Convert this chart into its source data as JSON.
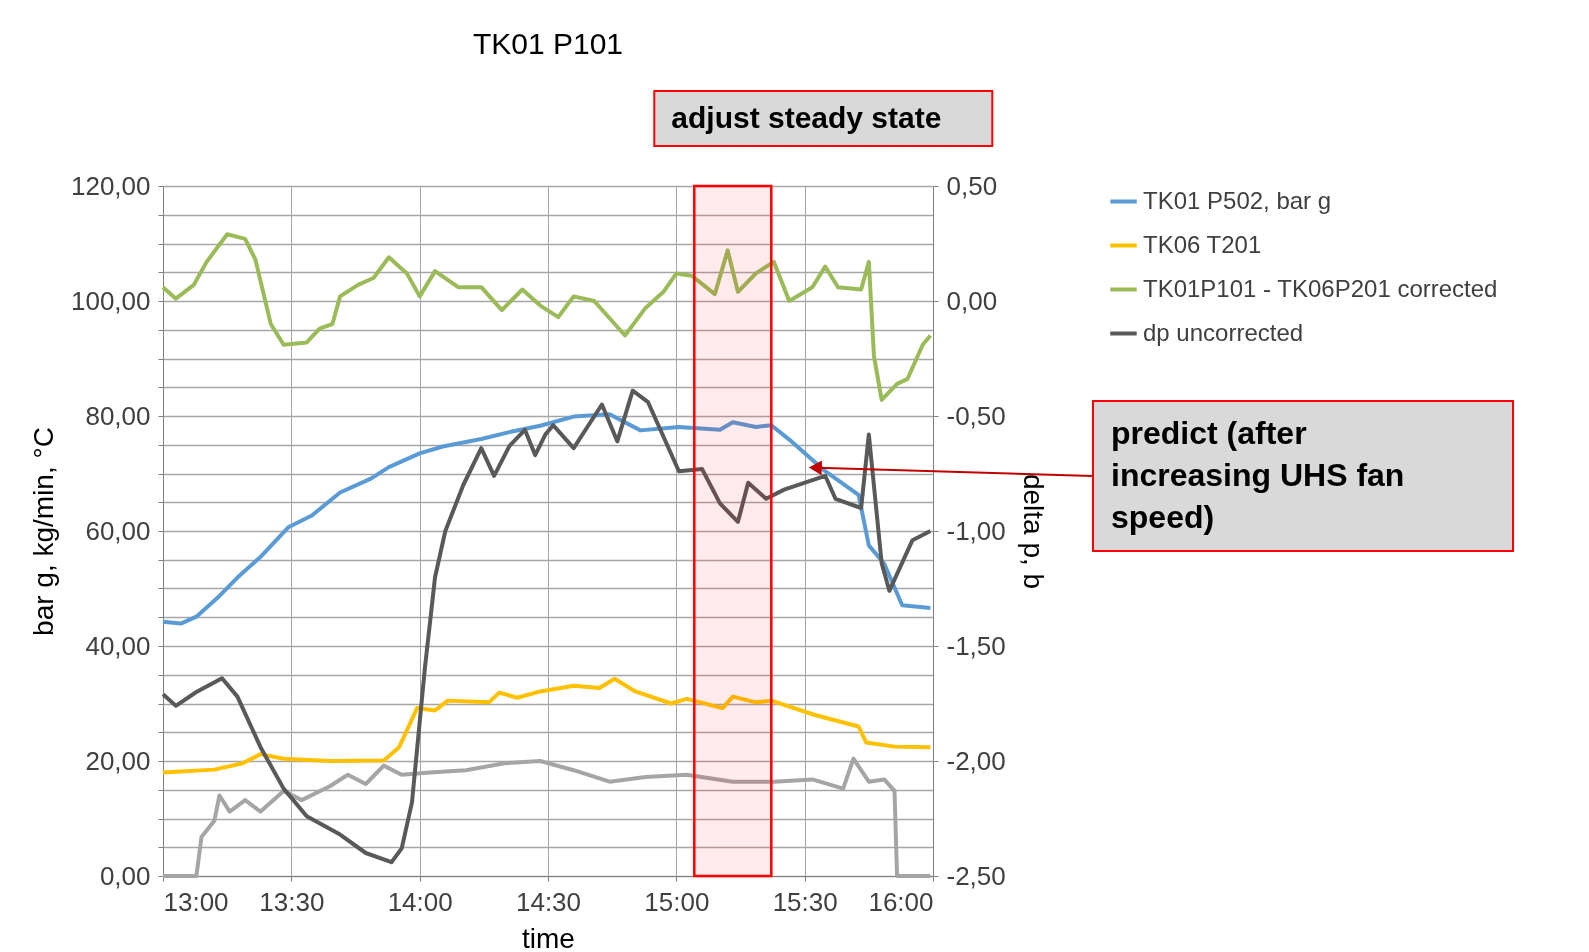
{
  "chart_data": {
    "type": "line",
    "title": "TK01 P101",
    "xlabel": "time",
    "ylabel": "bar g, kg/min, °C",
    "y2label": "delta p, b",
    "xlim": [
      13,
      16
    ],
    "xticks": [
      {
        "value": 13,
        "label": "13:00"
      },
      {
        "value": 13.5,
        "label": "13:30"
      },
      {
        "value": 14,
        "label": "14:00"
      },
      {
        "value": 14.5,
        "label": "14:30"
      },
      {
        "value": 15,
        "label": "15:00"
      },
      {
        "value": 15.5,
        "label": "15:30"
      },
      {
        "value": 16,
        "label": "16:00"
      }
    ],
    "ylim": [
      0,
      120
    ],
    "yticks": [
      {
        "value": 0,
        "label": "0,00"
      },
      {
        "value": 5,
        "label": null
      },
      {
        "value": 10,
        "label": null
      },
      {
        "value": 15,
        "label": null
      },
      {
        "value": 20,
        "label": "20,00"
      },
      {
        "value": 25,
        "label": null
      },
      {
        "value": 30,
        "label": null
      },
      {
        "value": 35,
        "label": null
      },
      {
        "value": 40,
        "label": "40,00"
      },
      {
        "value": 45,
        "label": null
      },
      {
        "value": 50,
        "label": null
      },
      {
        "value": 55,
        "label": null
      },
      {
        "value": 60,
        "label": "60,00"
      },
      {
        "value": 65,
        "label": null
      },
      {
        "value": 70,
        "label": null
      },
      {
        "value": 75,
        "label": null
      },
      {
        "value": 80,
        "label": "80,00"
      },
      {
        "value": 85,
        "label": null
      },
      {
        "value": 90,
        "label": null
      },
      {
        "value": 95,
        "label": null
      },
      {
        "value": 100,
        "label": "100,00"
      },
      {
        "value": 105,
        "label": null
      },
      {
        "value": 110,
        "label": null
      },
      {
        "value": 115,
        "label": null
      },
      {
        "value": 120,
        "label": "120,00"
      }
    ],
    "y2lim": [
      -2.5,
      0.5
    ],
    "y2ticks": [
      {
        "value": -2.5,
        "label": "-2,50"
      },
      {
        "value": -2,
        "label": "-2,00"
      },
      {
        "value": -1.5,
        "label": "-1,50"
      },
      {
        "value": -1,
        "label": "-1,00"
      },
      {
        "value": -0.5,
        "label": "-0,50"
      },
      {
        "value": 0,
        "label": "0,00"
      },
      {
        "value": 0.5,
        "label": "0,50"
      }
    ],
    "grid": true,
    "legend": "right",
    "series": [
      {
        "name": "TK01 P502, bar g",
        "color": "#5b9bd5",
        "x": [
          13.0,
          13.07,
          13.13,
          13.22,
          13.29,
          13.38,
          13.49,
          13.58,
          13.69,
          13.81,
          13.88,
          14.0,
          14.09,
          14.24,
          14.36,
          14.47,
          14.6,
          14.74,
          14.86,
          15.01,
          15.17,
          15.22,
          15.31,
          15.37,
          15.44,
          15.58,
          15.71,
          15.75,
          15.81,
          15.88,
          15.99
        ],
        "values": [
          44.2,
          43.9,
          45.1,
          48.7,
          51.9,
          55.5,
          60.7,
          62.7,
          66.7,
          69.1,
          71.1,
          73.5,
          74.7,
          76.0,
          77.3,
          78.3,
          79.9,
          80.3,
          77.5,
          78.1,
          77.6,
          78.9,
          78.1,
          78.4,
          75.9,
          70.4,
          66.3,
          57.5,
          54.3,
          47.1,
          46.6
        ]
      },
      {
        "color": "#a5a5a5",
        "x": [
          13.0,
          13.13,
          13.15,
          13.2,
          13.22,
          13.26,
          13.32,
          13.38,
          13.47,
          13.54,
          13.65,
          13.72,
          13.79,
          13.86,
          13.93,
          14.04,
          14.18,
          14.33,
          14.47,
          14.6,
          14.74,
          14.88,
          15.04,
          15.22,
          15.38,
          15.53,
          15.65,
          15.69,
          15.75,
          15.81,
          15.85,
          15.86,
          15.99
        ],
        "values": [
          0,
          0,
          6.8,
          9.6,
          14.0,
          11.2,
          13.2,
          11.2,
          14.8,
          13.2,
          15.6,
          17.6,
          16.0,
          19.2,
          17.6,
          18.0,
          18.4,
          19.6,
          20.0,
          18.4,
          16.4,
          17.2,
          17.6,
          16.4,
          16.4,
          16.8,
          15.2,
          20.4,
          16.4,
          16.8,
          14.8,
          0,
          0
        ]
      },
      {
        "name": "TK06 T201",
        "color": "#ffc000",
        "x": [
          13.0,
          13.2,
          13.31,
          13.38,
          13.47,
          13.65,
          13.86,
          13.92,
          13.99,
          14.06,
          14.11,
          14.27,
          14.31,
          14.38,
          14.47,
          14.6,
          14.7,
          14.76,
          14.84,
          14.98,
          15.04,
          15.18,
          15.22,
          15.31,
          15.37,
          15.54,
          15.71,
          15.74,
          15.85,
          15.99
        ],
        "values": [
          18.0,
          18.5,
          19.6,
          21.2,
          20.4,
          20.0,
          20.1,
          22.4,
          29.2,
          28.8,
          30.5,
          30.2,
          31.9,
          31.0,
          32.1,
          33.1,
          32.7,
          34.3,
          32.1,
          30.0,
          30.8,
          29.2,
          31.2,
          30.2,
          30.5,
          28.0,
          26.0,
          23.2,
          22.5,
          22.4
        ]
      },
      {
        "name": "TK01P101 - TK06P201 corrected",
        "color": "#9bbb59",
        "axis": "y2",
        "x": [
          13.0,
          13.05,
          13.12,
          13.17,
          13.25,
          13.32,
          13.36,
          13.42,
          13.47,
          13.56,
          13.61,
          13.66,
          13.69,
          13.76,
          13.82,
          13.88,
          13.95,
          14.0,
          14.06,
          14.15,
          14.24,
          14.32,
          14.4,
          14.47,
          14.54,
          14.6,
          14.68,
          14.8,
          14.88,
          14.95,
          15.0,
          15.06,
          15.15,
          15.2,
          15.24,
          15.31,
          15.38,
          15.44,
          15.53,
          15.58,
          15.63,
          15.72,
          15.75,
          15.77,
          15.8,
          15.86,
          15.9,
          15.96,
          15.99
        ],
        "values": [
          0.06,
          0.01,
          0.07,
          0.17,
          0.29,
          0.27,
          0.18,
          -0.1,
          -0.19,
          -0.18,
          -0.12,
          -0.1,
          0.02,
          0.07,
          0.1,
          0.19,
          0.12,
          0.02,
          0.13,
          0.06,
          0.06,
          -0.04,
          0.05,
          -0.02,
          -0.07,
          0.02,
          0.0,
          -0.15,
          -0.03,
          0.04,
          0.12,
          0.11,
          0.03,
          0.22,
          0.04,
          0.12,
          0.17,
          0.0,
          0.06,
          0.15,
          0.06,
          0.05,
          0.17,
          -0.24,
          -0.43,
          -0.36,
          -0.34,
          -0.19,
          -0.15
        ]
      },
      {
        "name": "dp uncorrected",
        "color": "#595959",
        "axis": "y2",
        "x": [
          13.0,
          13.05,
          13.13,
          13.23,
          13.29,
          13.38,
          13.47,
          13.56,
          13.69,
          13.79,
          13.89,
          13.93,
          13.97,
          14.02,
          14.06,
          14.1,
          14.17,
          14.24,
          14.29,
          14.35,
          14.41,
          14.45,
          14.49,
          14.52,
          14.6,
          14.71,
          14.77,
          14.83,
          14.89,
          15.01,
          15.1,
          15.17,
          15.24,
          15.28,
          15.35,
          15.42,
          15.58,
          15.62,
          15.72,
          15.75,
          15.8,
          15.83,
          15.92,
          15.99
        ],
        "values": [
          -1.71,
          -1.76,
          -1.7,
          -1.64,
          -1.72,
          -1.94,
          -2.12,
          -2.24,
          -2.32,
          -2.4,
          -2.44,
          -2.38,
          -2.18,
          -1.6,
          -1.2,
          -1.0,
          -0.8,
          -0.64,
          -0.76,
          -0.63,
          -0.56,
          -0.67,
          -0.58,
          -0.54,
          -0.64,
          -0.45,
          -0.61,
          -0.39,
          -0.44,
          -0.74,
          -0.73,
          -0.88,
          -0.96,
          -0.79,
          -0.86,
          -0.82,
          -0.76,
          -0.86,
          -0.9,
          -0.58,
          -1.14,
          -1.26,
          -1.04,
          -1.0
        ]
      }
    ],
    "bands": [
      {
        "axis": "x",
        "from": 15.07,
        "to": 15.37,
        "label": "adjust steady state",
        "color": "#ff0000"
      }
    ],
    "annotations": [
      {
        "text": "predict (after increasing UHS fan speed)",
        "x": 15.55,
        "y": 71
      }
    ]
  }
}
